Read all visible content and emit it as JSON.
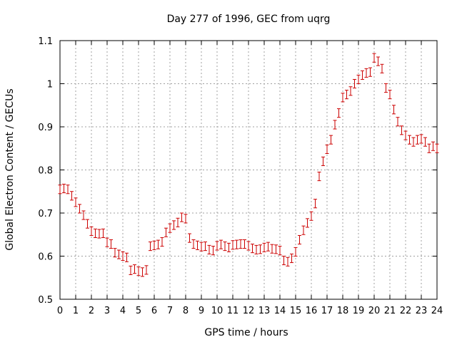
{
  "chart_data": {
    "type": "scatter",
    "title": "Day 277 of 1996, GEC from uqrg",
    "xlabel": "GPS time / hours",
    "ylabel": "Global Electron Content / GECUs",
    "xlim": [
      0,
      24
    ],
    "ylim": [
      0.5,
      1.1
    ],
    "xticks": [
      "0",
      "1",
      "2",
      "3",
      "4",
      "5",
      "6",
      "7",
      "8",
      "9",
      "10",
      "11",
      "12",
      "13",
      "14",
      "15",
      "16",
      "17",
      "18",
      "19",
      "20",
      "21",
      "22",
      "23",
      "24"
    ],
    "yticks": [
      "0.5",
      "0.6",
      "0.7",
      "0.8",
      "0.9",
      "1",
      "1.1"
    ],
    "grid": true,
    "legend": "none",
    "series": [
      {
        "color": "#cc0000",
        "marker": "error-bar",
        "error": 0.01,
        "x": [
          0.0,
          0.25,
          0.5,
          0.75,
          1.0,
          1.25,
          1.5,
          1.75,
          2.0,
          2.25,
          2.5,
          2.75,
          3.0,
          3.25,
          3.5,
          3.75,
          4.0,
          4.25,
          4.5,
          4.75,
          5.0,
          5.25,
          5.5,
          5.75,
          6.0,
          6.25,
          6.5,
          6.75,
          7.0,
          7.25,
          7.5,
          7.75,
          8.0,
          8.25,
          8.5,
          8.75,
          9.0,
          9.25,
          9.5,
          9.75,
          10.0,
          10.25,
          10.5,
          10.75,
          11.0,
          11.25,
          11.5,
          11.75,
          12.0,
          12.25,
          12.5,
          12.75,
          13.0,
          13.25,
          13.5,
          13.75,
          14.0,
          14.25,
          14.5,
          14.75,
          15.0,
          15.25,
          15.5,
          15.75,
          16.0,
          16.25,
          16.5,
          16.75,
          17.0,
          17.25,
          17.5,
          17.75,
          18.0,
          18.25,
          18.5,
          18.75,
          19.0,
          19.25,
          19.5,
          19.75,
          20.0,
          20.25,
          20.5,
          20.75,
          21.0,
          21.25,
          21.5,
          21.75,
          22.0,
          22.25,
          22.5,
          22.75,
          23.0,
          23.25,
          23.5,
          23.75,
          24.0
        ],
        "y": [
          0.755,
          0.757,
          0.755,
          0.74,
          0.725,
          0.71,
          0.695,
          0.675,
          0.658,
          0.653,
          0.652,
          0.653,
          0.632,
          0.628,
          0.608,
          0.604,
          0.6,
          0.597,
          0.567,
          0.57,
          0.565,
          0.563,
          0.568,
          0.623,
          0.625,
          0.627,
          0.633,
          0.655,
          0.665,
          0.672,
          0.678,
          0.69,
          0.687,
          0.642,
          0.628,
          0.625,
          0.622,
          0.623,
          0.615,
          0.613,
          0.624,
          0.627,
          0.623,
          0.62,
          0.626,
          0.627,
          0.628,
          0.628,
          0.624,
          0.618,
          0.615,
          0.616,
          0.62,
          0.622,
          0.617,
          0.616,
          0.613,
          0.59,
          0.587,
          0.595,
          0.61,
          0.638,
          0.66,
          0.677,
          0.693,
          0.722,
          0.785,
          0.82,
          0.848,
          0.87,
          0.905,
          0.932,
          0.968,
          0.975,
          0.983,
          1.0,
          1.01,
          1.02,
          1.025,
          1.027,
          1.06,
          1.052,
          1.035,
          0.99,
          0.975,
          0.94,
          0.912,
          0.892,
          0.88,
          0.87,
          0.865,
          0.87,
          0.872,
          0.865,
          0.85,
          0.855,
          0.85
        ]
      }
    ]
  }
}
